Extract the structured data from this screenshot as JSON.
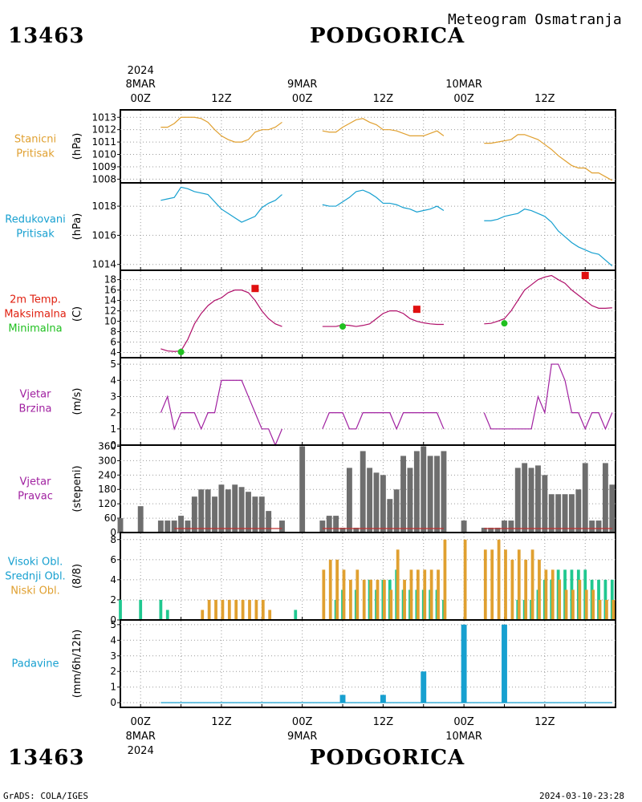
{
  "header": {
    "station_id": "13463",
    "station_name": "PODGORICA",
    "meteogram_title": "Meteogram Osmatranja"
  },
  "footer": {
    "station_id": "13463",
    "station_name": "PODGORICA",
    "credit": "GrADS: COLA/IGES",
    "timestamp": "2024-03-10-23:28"
  },
  "time_axis": {
    "top_year": "2024",
    "bottom_year": "2024",
    "day_labels": [
      {
        "hour": 0,
        "text": "8MAR"
      },
      {
        "hour": 24,
        "text": "9MAR"
      },
      {
        "hour": 48,
        "text": "10MAR"
      }
    ],
    "hour_labels": [
      {
        "hour": 0,
        "text": "00Z"
      },
      {
        "hour": 12,
        "text": "12Z"
      },
      {
        "hour": 24,
        "text": "00Z"
      },
      {
        "hour": 36,
        "text": "12Z"
      },
      {
        "hour": 48,
        "text": "00Z"
      },
      {
        "hour": 60,
        "text": "12Z"
      }
    ],
    "range_hours": [
      -3,
      70.5
    ]
  },
  "chart_data": [
    {
      "type": "line",
      "panel": "station_pressure",
      "labels": [
        "Stanicni",
        "Pritisak"
      ],
      "label_color": "#e0a030",
      "ylabel": "(hPa)",
      "ylim": [
        1007.7,
        1013.6
      ],
      "yticks": [
        1008,
        1009,
        1010,
        1011,
        1012,
        1013
      ],
      "series": [
        {
          "color": "#e0a030",
          "x": [
            3,
            4,
            5,
            6,
            7,
            8,
            9,
            10,
            11,
            12,
            13,
            14,
            15,
            16,
            17,
            18,
            19,
            20,
            21,
            27,
            28,
            29,
            30,
            31,
            32,
            33,
            34,
            35,
            36,
            37,
            38,
            39,
            40,
            41,
            42,
            43,
            44,
            45,
            51,
            52,
            53,
            54,
            55,
            56,
            57,
            58,
            59,
            60,
            61,
            62,
            63,
            64,
            65,
            66,
            67,
            68,
            69,
            70
          ],
          "y": [
            1012.2,
            1012.2,
            1012.5,
            1013.0,
            1013.0,
            1013.0,
            1012.9,
            1012.6,
            1012.0,
            1011.5,
            1011.2,
            1011.0,
            1011.0,
            1011.2,
            1011.8,
            1012.0,
            1012.0,
            1012.2,
            1012.6,
            1011.9,
            1011.8,
            1011.8,
            1012.2,
            1012.5,
            1012.8,
            1012.9,
            1012.6,
            1012.4,
            1012.0,
            1012.0,
            1011.9,
            1011.7,
            1011.5,
            1011.5,
            1011.5,
            1011.7,
            1011.9,
            1011.5,
            1010.9,
            1010.9,
            1011.0,
            1011.1,
            1011.2,
            1011.6,
            1011.6,
            1011.4,
            1011.2,
            1010.8,
            1010.4,
            1009.9,
            1009.5,
            1009.1,
            1008.9,
            1008.9,
            1008.5,
            1008.5,
            1008.2,
            1007.9
          ]
        }
      ]
    },
    {
      "type": "line",
      "panel": "reduced_pressure",
      "labels": [
        "Redukovani",
        "Pritisak"
      ],
      "label_color": "#17a0d0",
      "ylabel": "(hPa)",
      "ylim": [
        1013.6,
        1019.6
      ],
      "yticks": [
        1014,
        1016,
        1018
      ],
      "series": [
        {
          "color": "#17a0d0",
          "x": [
            3,
            4,
            5,
            6,
            7,
            8,
            9,
            10,
            11,
            12,
            13,
            14,
            15,
            16,
            17,
            18,
            19,
            20,
            21,
            27,
            28,
            29,
            30,
            31,
            32,
            33,
            34,
            35,
            36,
            37,
            38,
            39,
            40,
            41,
            42,
            43,
            44,
            45,
            51,
            52,
            53,
            54,
            55,
            56,
            57,
            58,
            59,
            60,
            61,
            62,
            63,
            64,
            65,
            66,
            67,
            68,
            69,
            70
          ],
          "y": [
            1018.4,
            1018.5,
            1018.6,
            1019.3,
            1019.2,
            1019.0,
            1018.9,
            1018.8,
            1018.3,
            1017.8,
            1017.5,
            1017.2,
            1016.9,
            1017.1,
            1017.3,
            1017.9,
            1018.2,
            1018.4,
            1018.8,
            1018.1,
            1018.0,
            1018.0,
            1018.3,
            1018.6,
            1019.0,
            1019.1,
            1018.9,
            1018.6,
            1018.2,
            1018.2,
            1018.1,
            1017.9,
            1017.8,
            1017.6,
            1017.7,
            1017.8,
            1018.0,
            1017.7,
            1017.0,
            1017.0,
            1017.1,
            1017.3,
            1017.4,
            1017.5,
            1017.8,
            1017.7,
            1017.5,
            1017.3,
            1016.9,
            1016.3,
            1015.9,
            1015.5,
            1015.2,
            1015.0,
            1014.8,
            1014.7,
            1014.3,
            1013.9
          ]
        }
      ]
    },
    {
      "type": "line",
      "panel": "temperature",
      "labels": [
        "2m Temp.",
        "Maksimalna",
        "Minimalna"
      ],
      "label_colors": [
        "#e02010",
        "#e02010",
        "#20c020"
      ],
      "ylabel": "(C)",
      "ylim": [
        3,
        19.8
      ],
      "yticks": [
        4,
        6,
        8,
        10,
        12,
        14,
        16,
        18
      ],
      "series": [
        {
          "color": "#b0106a",
          "x": [
            3,
            4,
            5,
            6,
            7,
            8,
            9,
            10,
            11,
            12,
            13,
            14,
            15,
            16,
            17,
            18,
            19,
            20,
            21,
            27,
            28,
            29,
            30,
            31,
            32,
            33,
            34,
            35,
            36,
            37,
            38,
            39,
            40,
            41,
            42,
            43,
            44,
            45,
            51,
            52,
            53,
            54,
            55,
            56,
            57,
            58,
            59,
            60,
            61,
            62,
            63,
            64,
            65,
            66,
            67,
            68,
            69,
            70
          ],
          "y": [
            4.7,
            4.3,
            4.2,
            4.3,
            6.5,
            9.5,
            11.5,
            13.0,
            14.0,
            14.5,
            15.5,
            16.0,
            16.0,
            15.5,
            14.0,
            12.0,
            10.5,
            9.5,
            9.0,
            9.0,
            9.0,
            9.0,
            9.3,
            9.2,
            9.0,
            9.2,
            9.5,
            10.5,
            11.5,
            12.0,
            12.0,
            11.5,
            10.5,
            10.0,
            9.7,
            9.5,
            9.4,
            9.4,
            9.5,
            9.6,
            10.0,
            10.5,
            12.0,
            14.0,
            16.0,
            17.0,
            18.0,
            18.5,
            18.8,
            18.0,
            17.3,
            16.0,
            15.0,
            14.0,
            13.0,
            12.5,
            12.5,
            12.6
          ]
        }
      ],
      "maxima": [
        {
          "x": 17,
          "y": 16.3
        },
        {
          "x": 41,
          "y": 12.3
        },
        {
          "x": 66,
          "y": 18.8
        }
      ],
      "minima": [
        {
          "x": 6,
          "y": 4.1
        },
        {
          "x": 30,
          "y": 9.0
        },
        {
          "x": 54,
          "y": 9.6
        }
      ]
    },
    {
      "type": "line",
      "panel": "wind_speed",
      "labels": [
        "Vjetar",
        "Brzina"
      ],
      "label_color": "#a020a0",
      "ylabel": "(m/s)",
      "ylim": [
        0,
        5.4
      ],
      "yticks": [
        0,
        1,
        2,
        3,
        4,
        5
      ],
      "series": [
        {
          "color": "#a020a0",
          "x": [
            3,
            4,
            5,
            6,
            7,
            8,
            9,
            10,
            11,
            12,
            13,
            14,
            15,
            16,
            17,
            18,
            19,
            20,
            21,
            27,
            28,
            29,
            30,
            31,
            32,
            33,
            34,
            35,
            36,
            37,
            38,
            39,
            40,
            41,
            42,
            43,
            44,
            45,
            51,
            52,
            53,
            54,
            55,
            56,
            57,
            58,
            59,
            60,
            61,
            62,
            63,
            64,
            65,
            66,
            67,
            68,
            69,
            70
          ],
          "y": [
            2,
            3,
            1,
            2,
            2,
            2,
            1,
            2,
            2,
            4,
            4,
            4,
            4,
            3,
            2,
            1,
            1,
            0,
            1,
            1,
            2,
            2,
            2,
            1,
            1,
            2,
            2,
            2,
            2,
            2,
            1,
            2,
            2,
            2,
            2,
            2,
            2,
            1,
            2,
            1,
            1,
            1,
            1,
            1,
            1,
            1,
            3,
            2,
            5,
            5,
            4,
            2,
            2,
            1,
            2,
            2,
            1,
            2
          ]
        }
      ]
    },
    {
      "type": "bar",
      "panel": "wind_direction",
      "labels": [
        "Vjetar",
        "Pravac"
      ],
      "label_color": "#a020a0",
      "ylabel": "(stepeni)",
      "ylim": [
        0,
        365
      ],
      "yticks": [
        0,
        60,
        120,
        180,
        240,
        300,
        360
      ],
      "bar_color": "#6e6e6e",
      "zero_marker_color": "#c03030",
      "x": [
        -3,
        0,
        3,
        4,
        5,
        6,
        7,
        8,
        9,
        10,
        11,
        12,
        13,
        14,
        15,
        16,
        17,
        18,
        19,
        20,
        21,
        24,
        27,
        28,
        29,
        30,
        31,
        32,
        33,
        34,
        35,
        36,
        37,
        38,
        39,
        40,
        41,
        42,
        43,
        44,
        45,
        48,
        51,
        52,
        53,
        54,
        55,
        56,
        57,
        58,
        59,
        60,
        61,
        62,
        63,
        64,
        65,
        66,
        67,
        68,
        69,
        70
      ],
      "values": [
        60,
        110,
        50,
        50,
        50,
        70,
        50,
        150,
        180,
        180,
        150,
        200,
        180,
        200,
        190,
        170,
        150,
        150,
        90,
        0,
        50,
        360,
        50,
        70,
        70,
        20,
        270,
        20,
        340,
        270,
        250,
        240,
        140,
        180,
        320,
        270,
        340,
        360,
        320,
        320,
        340,
        50,
        20,
        20,
        20,
        50,
        50,
        270,
        290,
        270,
        280,
        240,
        160,
        160,
        160,
        160,
        180,
        290,
        50,
        50,
        290,
        200
      ]
    },
    {
      "type": "bar",
      "panel": "clouds",
      "labels": [
        "Visoki Obl.",
        "Srednji Obl.",
        "Niski Obl."
      ],
      "label_colors": [
        "#17a0d0",
        "#17a0d0",
        "#e0a030"
      ],
      "ylabel": "(8/8)",
      "ylim": [
        0,
        8.7
      ],
      "yticks": [
        0,
        2,
        4,
        6,
        8
      ],
      "series": [
        {
          "name": "Visoki Obl.",
          "color": "#20c890",
          "x": [
            -3,
            0,
            3,
            4,
            23,
            29,
            30,
            32,
            34,
            35,
            36,
            37,
            38,
            39,
            40,
            41,
            42,
            43,
            44,
            45,
            56,
            57,
            58,
            59,
            60,
            61,
            62,
            63,
            64,
            65,
            66,
            67,
            68,
            69,
            70
          ],
          "values": [
            2,
            2,
            2,
            1,
            1,
            2,
            3,
            3,
            4,
            3,
            4,
            4,
            5,
            3,
            3,
            3,
            3,
            3,
            3,
            2,
            2,
            2,
            2,
            3,
            4,
            4,
            5,
            5,
            5,
            5,
            5,
            4,
            4,
            4,
            4
          ]
        },
        {
          "name": "Niski Obl.",
          "color": "#e0a030",
          "x": [
            9,
            10,
            11,
            12,
            13,
            14,
            15,
            16,
            17,
            18,
            19,
            27,
            28,
            29,
            30,
            31,
            32,
            33,
            34,
            35,
            36,
            37,
            38,
            39,
            40,
            41,
            42,
            43,
            44,
            45,
            48,
            51,
            52,
            53,
            54,
            55,
            56,
            57,
            58,
            59,
            60,
            61,
            62,
            63,
            64,
            65,
            66,
            67,
            68,
            69,
            70
          ],
          "values": [
            1,
            2,
            2,
            2,
            2,
            2,
            2,
            2,
            2,
            2,
            1,
            5,
            6,
            6,
            5,
            4,
            5,
            4,
            4,
            4,
            4,
            3,
            7,
            4,
            5,
            5,
            5,
            5,
            5,
            8,
            8,
            7,
            7,
            8,
            7,
            6,
            7,
            6,
            7,
            6,
            5,
            5,
            4,
            3,
            3,
            4,
            3,
            3,
            2,
            2,
            2
          ]
        }
      ]
    },
    {
      "type": "bar",
      "panel": "precipitation",
      "labels": [
        "Padavine"
      ],
      "label_color": "#17a0d0",
      "ylabel": "(mm/6h/12h)",
      "ylim": [
        -0.3,
        5.3
      ],
      "yticks": [
        0,
        1,
        2,
        3,
        4,
        5
      ],
      "bar_color": "#17a0d0",
      "x": [
        30,
        36,
        42,
        48,
        54
      ],
      "values": [
        0.5,
        0.5,
        2.0,
        5.0,
        5.0
      ]
    }
  ]
}
